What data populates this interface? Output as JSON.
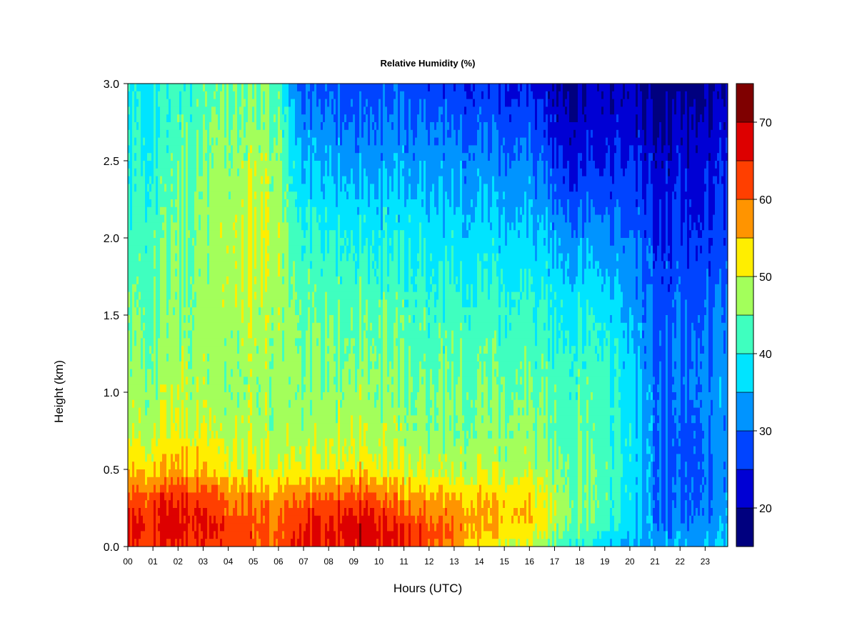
{
  "chart_data": {
    "type": "heatmap",
    "title": "Relative Humidity (%)",
    "xlabel": "Hours (UTC)",
    "ylabel": "Height (km)",
    "xlim": [
      0,
      23.9
    ],
    "ylim": [
      0.0,
      3.0
    ],
    "x_tick_labels": [
      "00",
      "01",
      "02",
      "03",
      "04",
      "05",
      "06",
      "07",
      "08",
      "09",
      "10",
      "11",
      "12",
      "13",
      "14",
      "15",
      "16",
      "17",
      "18",
      "19",
      "20",
      "21",
      "22",
      "23"
    ],
    "y_tick_labels": [
      "0.0",
      "0.5",
      "1.0",
      "1.5",
      "2.0",
      "2.5",
      "3.0"
    ],
    "colorbar": {
      "levels": [
        15,
        20,
        25,
        30,
        35,
        40,
        45,
        50,
        55,
        60,
        65,
        70,
        75
      ],
      "colors": [
        "#00007f",
        "#0000d4",
        "#0044ff",
        "#0094ff",
        "#00e4ff",
        "#3fffbf",
        "#a3ff5b",
        "#ffee00",
        "#ff9400",
        "#ff3f00",
        "#dd0000",
        "#7f0000"
      ],
      "tick_labels": [
        "20",
        "30",
        "40",
        "50",
        "60",
        "70"
      ],
      "tick_values": [
        20,
        30,
        40,
        50,
        60,
        70
      ]
    },
    "grid": false,
    "x_key_hours": [
      0,
      1,
      2,
      3,
      4,
      5,
      6,
      6.5,
      7,
      8,
      9,
      9.5,
      10,
      11,
      12,
      13,
      14,
      15,
      16,
      17,
      18,
      19,
      20,
      21,
      22,
      23,
      23.9
    ],
    "y_key_km": [
      0.0,
      0.1,
      0.2,
      0.35,
      0.5,
      0.75,
      1.0,
      1.5,
      2.0,
      2.5,
      3.0
    ],
    "values_by_hour": [
      [
        63,
        64,
        64,
        60,
        53,
        48,
        46,
        44,
        41,
        39,
        38
      ],
      [
        64,
        65,
        66,
        61,
        54,
        49,
        47,
        45,
        43,
        41,
        39
      ],
      [
        65,
        67,
        67,
        63,
        56,
        51,
        48,
        46,
        45,
        43,
        41
      ],
      [
        64,
        66,
        66,
        62,
        55,
        50,
        48,
        47,
        47,
        45,
        43
      ],
      [
        63,
        64,
        63,
        59,
        52,
        49,
        47,
        48,
        49,
        47,
        45
      ],
      [
        61,
        62,
        61,
        57,
        51,
        48,
        47,
        48,
        50,
        48,
        45
      ],
      [
        60,
        61,
        60,
        56,
        50,
        48,
        47,
        48,
        49,
        47,
        43
      ],
      [
        63,
        64,
        62,
        57,
        50,
        47,
        46,
        45,
        43,
        38,
        33
      ],
      [
        65,
        66,
        64,
        59,
        51,
        47,
        46,
        44,
        41,
        35,
        28
      ],
      [
        65,
        66,
        64,
        59,
        51,
        48,
        46,
        44,
        40,
        34,
        28
      ],
      [
        67,
        68,
        66,
        61,
        52,
        49,
        47,
        44,
        40,
        33,
        27
      ],
      [
        68,
        69,
        67,
        62,
        53,
        49,
        47,
        45,
        40,
        34,
        27
      ],
      [
        67,
        67,
        64,
        58,
        51,
        48,
        46,
        44,
        39,
        33,
        27
      ],
      [
        65,
        65,
        61,
        56,
        50,
        47,
        45,
        43,
        39,
        33,
        28
      ],
      [
        63,
        63,
        60,
        55,
        49,
        46,
        45,
        42,
        38,
        33,
        27
      ],
      [
        57,
        60,
        58,
        54,
        48,
        46,
        45,
        42,
        38,
        32,
        26
      ],
      [
        52,
        56,
        57,
        54,
        49,
        46,
        45,
        42,
        37,
        32,
        25
      ],
      [
        50,
        54,
        56,
        53,
        49,
        46,
        45,
        42,
        37,
        31,
        25
      ],
      [
        48,
        52,
        55,
        52,
        48,
        46,
        44,
        41,
        36,
        31,
        24
      ],
      [
        44,
        47,
        49,
        48,
        46,
        44,
        43,
        40,
        34,
        26,
        20
      ],
      [
        40,
        44,
        46,
        46,
        45,
        44,
        43,
        40,
        33,
        24,
        19
      ],
      [
        37,
        41,
        43,
        44,
        44,
        43,
        43,
        39,
        32,
        25,
        21
      ],
      [
        33,
        35,
        37,
        38,
        38,
        38,
        37,
        34,
        30,
        25,
        20
      ],
      [
        33,
        32,
        31,
        31,
        31,
        31,
        31,
        29,
        26,
        22,
        17
      ],
      [
        34,
        32,
        30,
        29,
        28,
        28,
        30,
        29,
        26,
        23,
        18
      ],
      [
        35,
        33,
        31,
        30,
        30,
        31,
        32,
        30,
        26,
        23,
        19
      ],
      [
        36,
        34,
        33,
        32,
        32,
        32,
        33,
        30,
        27,
        24,
        20
      ]
    ]
  }
}
